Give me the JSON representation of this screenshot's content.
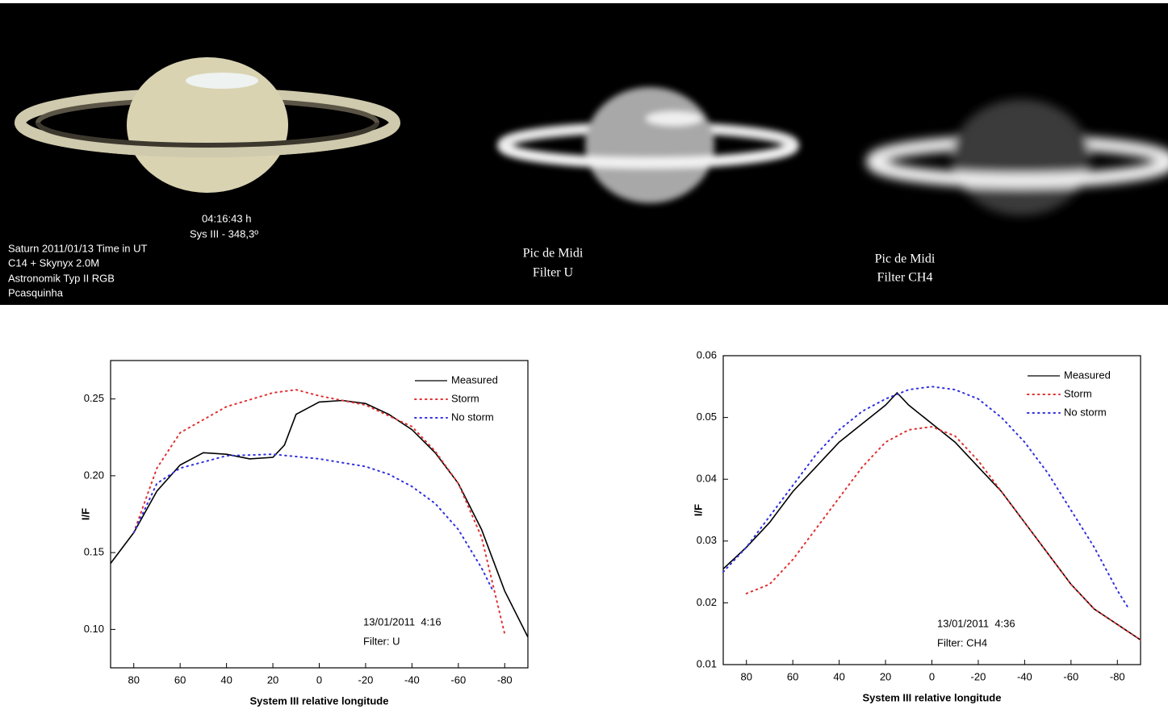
{
  "panels": [
    {
      "lines": [
        "04:16:43 h",
        "Sys III - 348,3º",
        "Saturn 2011/01/13 Time in UT",
        "C14 + Skynyx 2.0M",
        "Astronomik Typ II RGB",
        "Pcasquinha"
      ]
    },
    {
      "lines": [
        "Pic de Midi",
        "Filter U"
      ]
    },
    {
      "lines": [
        "Pic de Midi",
        "Filter CH4"
      ]
    }
  ],
  "chart_data": [
    {
      "type": "line",
      "x_label": "System III relative longitude",
      "y_label": "I/F",
      "annotations": [
        "13/01/2011  4:16",
        "Filter: U"
      ],
      "legend": "upper right",
      "xlim": [
        90,
        -90
      ],
      "xticks": [
        80,
        60,
        40,
        20,
        0,
        -20,
        -40,
        -60,
        -80
      ],
      "ylim": [
        0.075,
        0.275
      ],
      "yticks": [
        {
          "value": 0.1,
          "label": "0.10"
        },
        0.15,
        {
          "value": 0.2,
          "label": "0.20"
        },
        0.25
      ],
      "series": [
        {
          "name": "Measured",
          "color": "#000000",
          "style": "solid",
          "x": [
            90,
            80,
            70,
            60,
            50,
            40,
            30,
            20,
            15,
            10,
            0,
            -10,
            -20,
            -30,
            -40,
            -50,
            -60,
            -70,
            -80,
            -90
          ],
          "values": [
            0.143,
            0.163,
            0.19,
            0.207,
            0.215,
            0.214,
            0.211,
            0.212,
            0.22,
            0.24,
            0.248,
            0.249,
            0.247,
            0.24,
            0.23,
            0.215,
            0.195,
            0.165,
            0.125,
            0.095
          ]
        },
        {
          "name": "Storm",
          "color": "#e03030",
          "style": "dotted",
          "x": [
            80,
            70,
            60,
            40,
            20,
            10,
            0,
            -10,
            -20,
            -40,
            -50,
            -60,
            -70,
            -80
          ],
          "values": [
            0.163,
            0.205,
            0.228,
            0.245,
            0.254,
            0.256,
            0.252,
            0.249,
            0.246,
            0.232,
            0.216,
            0.195,
            0.16,
            0.097
          ]
        },
        {
          "name": "No storm",
          "color": "#3030e0",
          "style": "dotted",
          "x": [
            80,
            70,
            60,
            40,
            20,
            0,
            -20,
            -30,
            -40,
            -50,
            -60,
            -70,
            -75
          ],
          "values": [
            0.163,
            0.195,
            0.205,
            0.213,
            0.214,
            0.211,
            0.206,
            0.201,
            0.193,
            0.182,
            0.165,
            0.14,
            0.125
          ]
        }
      ]
    },
    {
      "type": "line",
      "x_label": "System III relative longitude",
      "y_label": "I/F",
      "annotations": [
        "13/01/2011  4:36",
        "Filter: CH4"
      ],
      "legend": "upper right",
      "xlim": [
        90,
        -90
      ],
      "xticks": [
        80,
        60,
        40,
        20,
        0,
        -20,
        -40,
        -60,
        -80
      ],
      "ylim": [
        0.01,
        0.06
      ],
      "yticks": [
        0.01,
        0.02,
        0.03,
        0.04,
        0.05,
        0.06
      ],
      "series": [
        {
          "name": "Measured",
          "color": "#000000",
          "style": "solid",
          "x": [
            90,
            80,
            70,
            60,
            50,
            40,
            30,
            20,
            15,
            10,
            0,
            -10,
            -20,
            -30,
            -40,
            -50,
            -60,
            -70,
            -80,
            -90
          ],
          "values": [
            0.0255,
            0.029,
            0.033,
            0.038,
            0.042,
            0.046,
            0.049,
            0.052,
            0.054,
            0.052,
            0.049,
            0.046,
            0.042,
            0.038,
            0.033,
            0.028,
            0.023,
            0.019,
            0.0165,
            0.014
          ]
        },
        {
          "name": "Storm",
          "color": "#e03030",
          "style": "dotted",
          "x": [
            80,
            70,
            60,
            50,
            40,
            30,
            20,
            10,
            0,
            -10,
            -20,
            -30,
            -40,
            -50,
            -60,
            -70,
            -80,
            -90
          ],
          "values": [
            0.0215,
            0.023,
            0.027,
            0.032,
            0.037,
            0.042,
            0.046,
            0.048,
            0.0485,
            0.047,
            0.043,
            0.038,
            0.033,
            0.028,
            0.023,
            0.019,
            0.0165,
            0.014
          ]
        },
        {
          "name": "No storm",
          "color": "#3030e0",
          "style": "dotted",
          "x": [
            90,
            80,
            70,
            60,
            50,
            40,
            30,
            20,
            10,
            0,
            -10,
            -20,
            -30,
            -40,
            -50,
            -60,
            -70,
            -80,
            -85
          ],
          "values": [
            0.025,
            0.029,
            0.034,
            0.039,
            0.044,
            0.048,
            0.051,
            0.053,
            0.0545,
            0.055,
            0.0545,
            0.053,
            0.05,
            0.046,
            0.041,
            0.035,
            0.029,
            0.022,
            0.019
          ]
        }
      ]
    }
  ]
}
